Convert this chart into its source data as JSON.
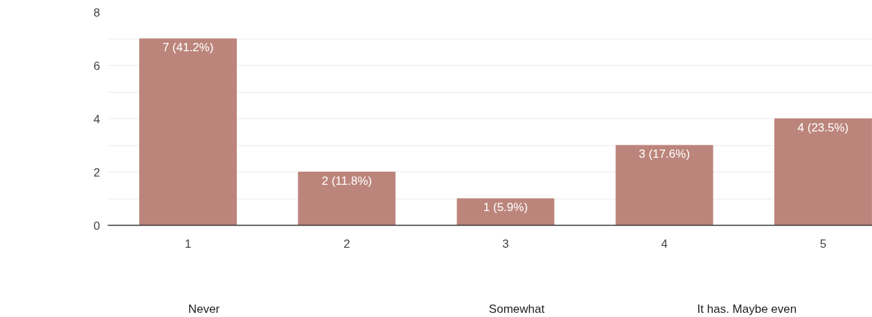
{
  "chart_data": {
    "type": "bar",
    "x": [
      1,
      2,
      3,
      4,
      5
    ],
    "values": [
      7,
      2,
      1,
      3,
      4
    ],
    "color": "#bc857c",
    "value_labels": [
      "7 (41.2%)",
      "2 (11.8%)",
      "1 (5.9%)",
      "3 (17.6%)",
      "4 (23.5%)"
    ],
    "xticks": [
      1,
      2,
      3,
      4,
      5
    ],
    "xlim": [
      0.494,
      5.31
    ],
    "ylim": [
      0,
      8
    ],
    "yticks": [
      0,
      {
        "value": 1,
        "label": null
      },
      2,
      {
        "value": 3,
        "label": null
      },
      4,
      {
        "value": 5,
        "label": null
      },
      6,
      {
        "value": 7,
        "label": null
      },
      8
    ],
    "grid": "y",
    "annotations": [
      "Never",
      "Somewhat",
      "It has. Maybe even"
    ]
  }
}
